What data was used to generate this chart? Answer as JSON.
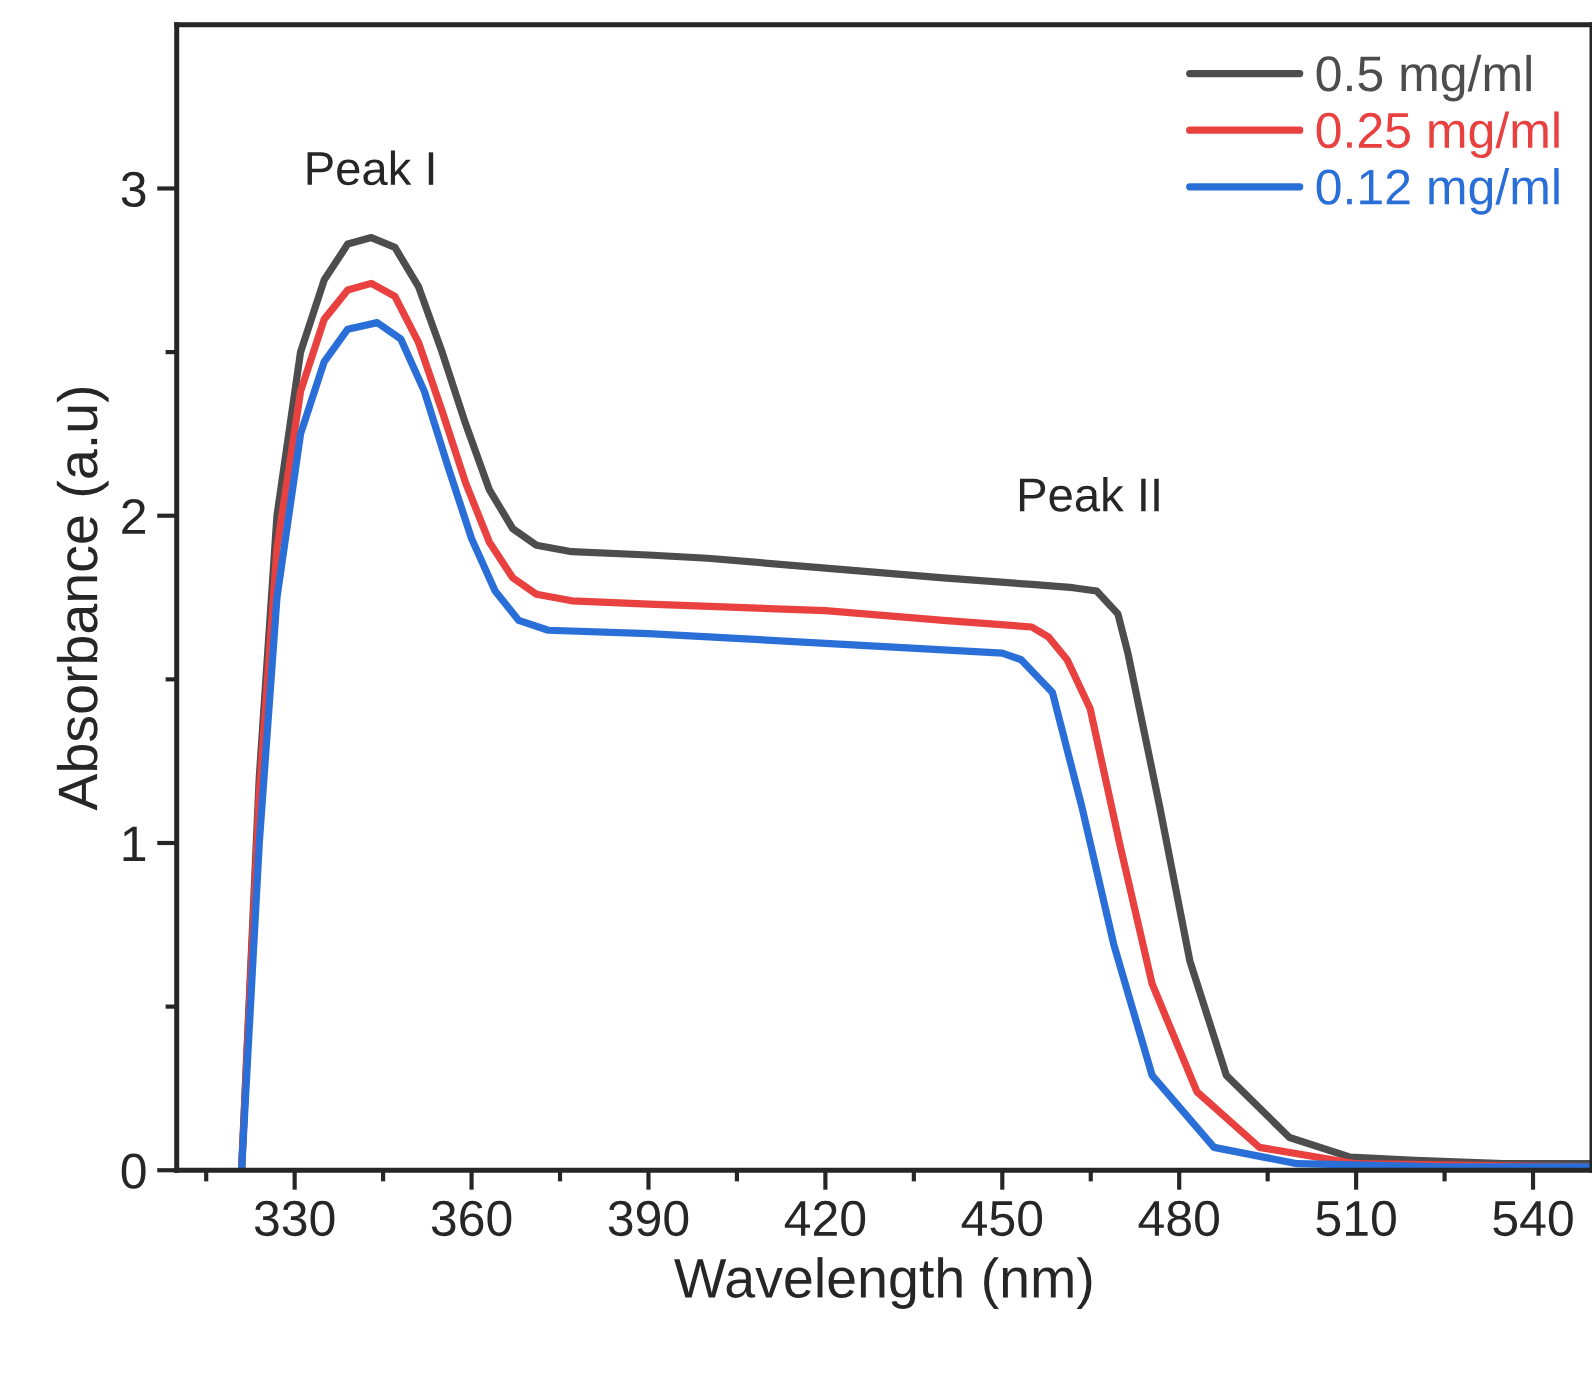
{
  "chart_data": {
    "type": "line",
    "xlabel": "Wavelength (nm)",
    "ylabel": "Absorbance (a.u)",
    "xlim": [
      310,
      550
    ],
    "ylim": [
      0,
      3.5
    ],
    "xticks": [
      {
        "value": 315,
        "label": null
      },
      330,
      {
        "value": 345,
        "label": null
      },
      360,
      {
        "value": 375,
        "label": null
      },
      390,
      {
        "value": 405,
        "label": null
      },
      420,
      {
        "value": 435,
        "label": null
      },
      450,
      {
        "value": 465,
        "label": null
      },
      480,
      {
        "value": 495,
        "label": null
      },
      510,
      {
        "value": 525,
        "label": null
      },
      540
    ],
    "yticks": [
      0,
      {
        "value": 0.5,
        "label": null
      },
      1,
      {
        "value": 1.5,
        "label": null
      },
      2,
      {
        "value": 2.5,
        "label": null
      },
      3
    ],
    "grid": false,
    "legend": "top right",
    "line_style": "solid",
    "marker": "none",
    "annotations": [
      "Peak I",
      "Peak II"
    ],
    "series": [
      {
        "name": "0.5 mg/ml",
        "color": "#4d4d4d",
        "x": [
          321,
          324,
          327,
          331,
          335,
          339,
          343,
          347,
          351,
          355,
          359,
          363,
          367,
          371,
          377,
          390,
          400,
          420,
          440,
          455,
          462,
          466,
          469.6,
          471.3,
          476.7,
          481.8,
          488,
          498.7,
          509,
          520,
          535,
          550
        ],
        "values": [
          0,
          1.2,
          2.0,
          2.5,
          2.72,
          2.83,
          2.85,
          2.82,
          2.7,
          2.5,
          2.28,
          2.08,
          1.96,
          1.91,
          1.89,
          1.88,
          1.87,
          1.84,
          1.81,
          1.79,
          1.78,
          1.77,
          1.7,
          1.58,
          1.11,
          0.64,
          0.29,
          0.1,
          0.04,
          0.03,
          0.02,
          0.02
        ]
      },
      {
        "name": "0.25 mg/ml",
        "color": "#e8413f",
        "x": [
          321,
          324,
          327,
          331,
          335,
          339,
          343,
          347,
          351,
          355,
          359,
          363,
          367,
          371,
          377,
          390,
          420,
          440,
          455,
          457.8,
          461,
          464.9,
          470,
          475.4,
          483,
          493.6,
          510,
          550
        ],
        "values": [
          0,
          1.15,
          1.9,
          2.38,
          2.6,
          2.69,
          2.71,
          2.67,
          2.53,
          2.32,
          2.1,
          1.92,
          1.81,
          1.76,
          1.74,
          1.73,
          1.71,
          1.68,
          1.66,
          1.63,
          1.56,
          1.41,
          0.99,
          0.57,
          0.24,
          0.07,
          0.02,
          0.01
        ]
      },
      {
        "name": "0.12 mg/ml",
        "color": "#2a6fd8",
        "x": [
          321,
          324,
          327,
          331,
          335,
          339,
          344,
          348,
          352,
          356,
          360,
          364,
          368,
          373,
          390,
          420,
          450,
          453.2,
          458.5,
          463.5,
          468.9,
          475.4,
          485.9,
          500,
          525,
          550
        ],
        "values": [
          0,
          1.0,
          1.75,
          2.25,
          2.47,
          2.57,
          2.59,
          2.54,
          2.38,
          2.15,
          1.93,
          1.77,
          1.68,
          1.65,
          1.64,
          1.61,
          1.58,
          1.56,
          1.46,
          1.11,
          0.69,
          0.29,
          0.07,
          0.02,
          0.01,
          0.01
        ]
      }
    ]
  }
}
